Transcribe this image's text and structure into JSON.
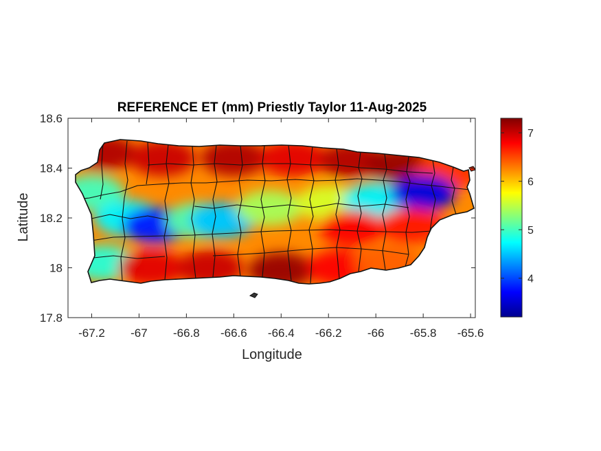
{
  "chart_data": {
    "type": "heatmap",
    "title": "REFERENCE ET (mm) Priestly Taylor 11-Aug-2025",
    "xlabel": "Longitude",
    "ylabel": "Latitude",
    "xlim": [
      -67.3,
      -65.58
    ],
    "ylim": [
      17.8,
      18.6
    ],
    "xticks": [
      -67.2,
      -67,
      -66.8,
      -66.6,
      -66.4,
      -66.2,
      -66,
      -65.8,
      -65.6
    ],
    "xtick_labels": [
      "-67.2",
      "-67",
      "-66.8",
      "-66.6",
      "-66.4",
      "-66.2",
      "-66",
      "-65.8",
      "-65.6"
    ],
    "yticks": [
      17.8,
      18,
      18.2,
      18.4,
      18.6
    ],
    "ytick_labels": [
      "17.8",
      "18",
      "18.2",
      "18.4",
      "18.6"
    ],
    "colormap": "jet",
    "color_range": [
      3.2,
      7.3
    ],
    "colorbar_ticks": [
      4,
      5,
      6,
      7
    ],
    "colorbar_tick_labels": [
      "4",
      "5",
      "6",
      "7"
    ],
    "grid": false,
    "colorbar_position": "right",
    "regional_values": [
      {
        "lon": -67.15,
        "lat": 18.46,
        "value": 7.1
      },
      {
        "lon": -66.9,
        "lat": 18.44,
        "value": 7.0
      },
      {
        "lon": -66.6,
        "lat": 18.44,
        "value": 7.1
      },
      {
        "lon": -66.35,
        "lat": 18.44,
        "value": 6.9
      },
      {
        "lon": -66.1,
        "lat": 18.43,
        "value": 7.1
      },
      {
        "lon": -65.9,
        "lat": 18.41,
        "value": 7.2
      },
      {
        "lon": -65.7,
        "lat": 18.38,
        "value": 6.6
      },
      {
        "lon": -67.2,
        "lat": 18.3,
        "value": 5.0
      },
      {
        "lon": -67.05,
        "lat": 18.2,
        "value": 4.7
      },
      {
        "lon": -66.93,
        "lat": 18.17,
        "value": 3.8
      },
      {
        "lon": -66.75,
        "lat": 18.19,
        "value": 5.1
      },
      {
        "lon": -66.65,
        "lat": 18.19,
        "value": 4.5
      },
      {
        "lon": -66.45,
        "lat": 18.24,
        "value": 5.4
      },
      {
        "lon": -66.2,
        "lat": 18.26,
        "value": 5.6
      },
      {
        "lon": -66.0,
        "lat": 18.27,
        "value": 4.7
      },
      {
        "lon": -65.8,
        "lat": 18.3,
        "value": 3.6
      },
      {
        "lon": -66.1,
        "lat": 18.16,
        "value": 6.8
      },
      {
        "lon": -65.85,
        "lat": 18.17,
        "value": 6.7
      },
      {
        "lon": -67.15,
        "lat": 18.02,
        "value": 4.9
      },
      {
        "lon": -66.95,
        "lat": 18.0,
        "value": 6.9
      },
      {
        "lon": -66.7,
        "lat": 18.0,
        "value": 7.0
      },
      {
        "lon": -66.4,
        "lat": 17.99,
        "value": 7.2
      },
      {
        "lon": -66.15,
        "lat": 18.0,
        "value": 6.8
      },
      {
        "lon": -65.95,
        "lat": 18.02,
        "value": 6.4
      }
    ]
  }
}
